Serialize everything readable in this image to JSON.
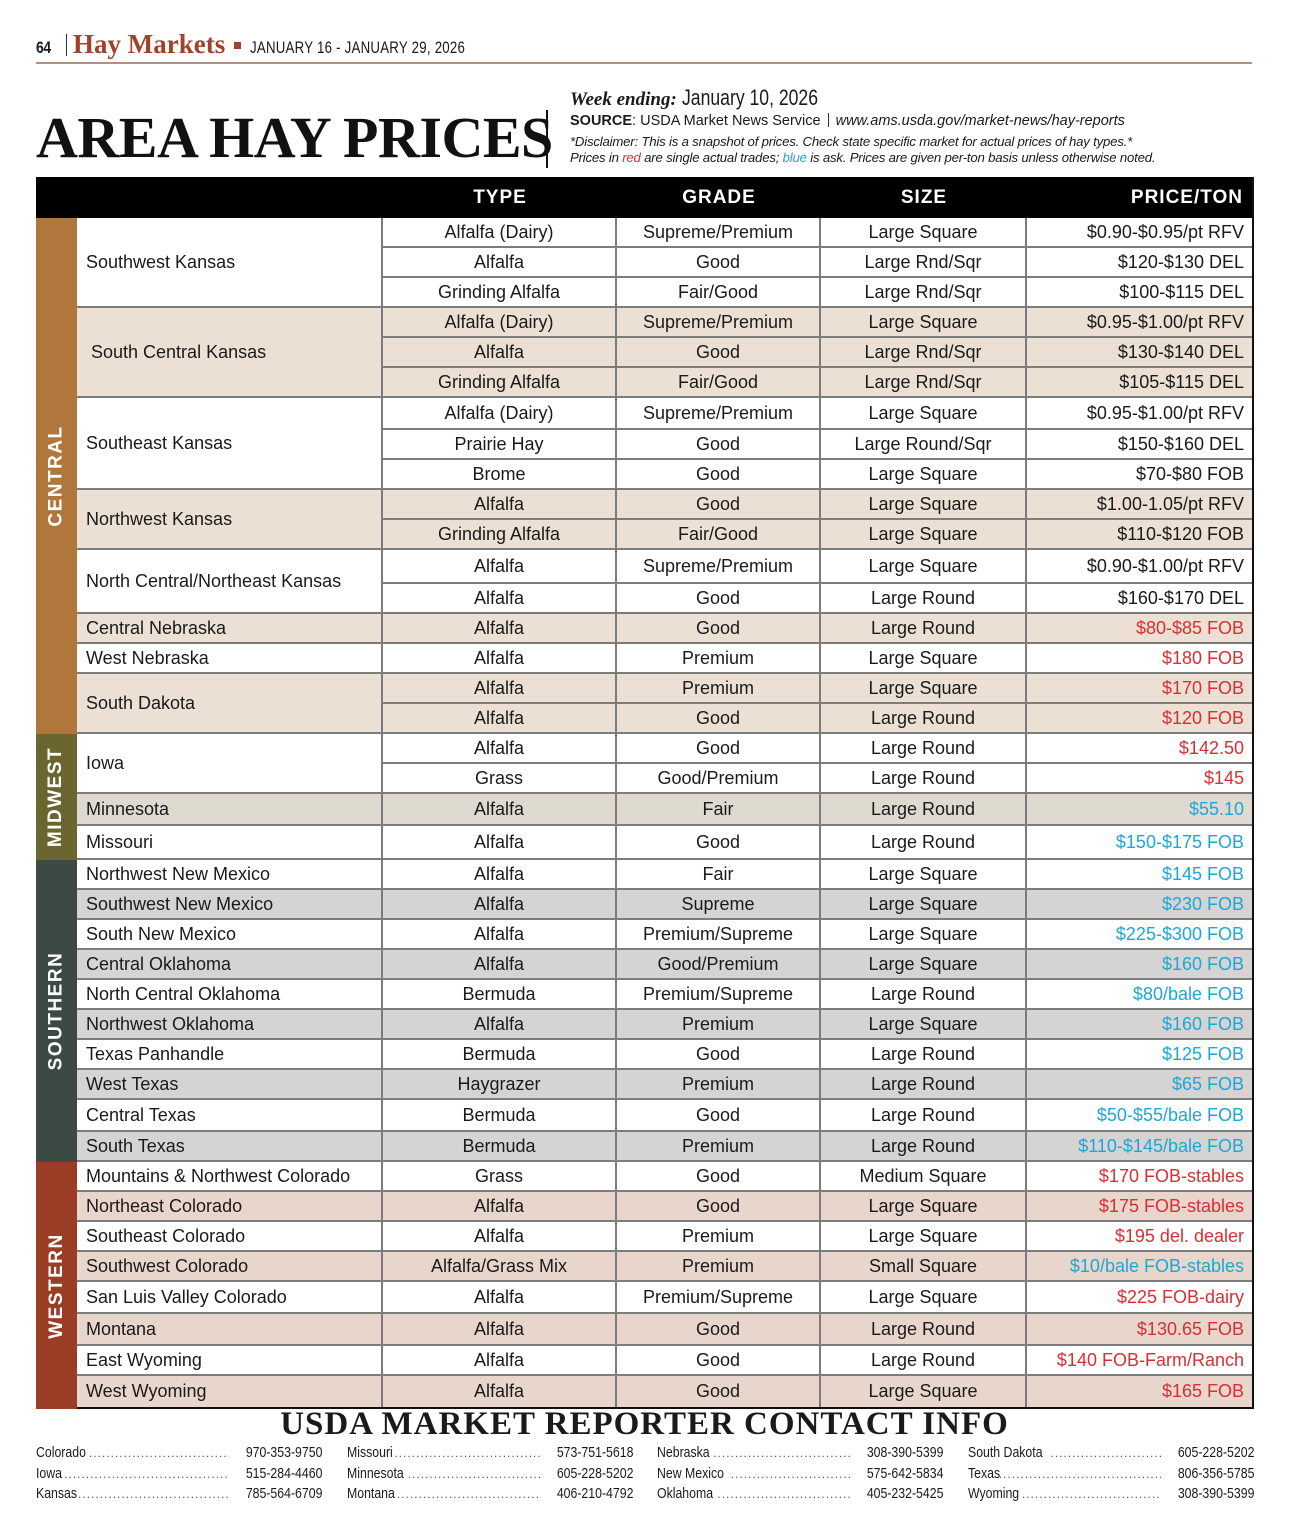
{
  "header": {
    "page_number": "64",
    "section": "Hay Markets",
    "dates": "JANUARY 16 - JANUARY 29, 2026"
  },
  "title": "AREA HAY PRICES",
  "meta": {
    "week_label": "Week ending:",
    "week_value": "January 10, 2026",
    "source_label": "SOURCE",
    "source_value": ": USDA Market News Service",
    "source_url": "www.ams.usda.gov/market-news/hay-reports",
    "disclaimer": "*Disclaimer: This is a snapshot of prices. Check state specific market for actual prices of hay types.*",
    "legend_prefix": "Prices in ",
    "legend_red": "red",
    "legend_mid": " are single actual trades; ",
    "legend_blue": "blue",
    "legend_suffix": " is ask. Prices are given per-ton basis unless otherwise noted."
  },
  "colors": {
    "section_red": "#a1432c",
    "price_red": "#d63034",
    "price_blue": "#1ea6d8",
    "central_band": "#b0773d",
    "midwest_band": "#6b6530",
    "southern_band": "#3d4a44",
    "western_band": "#9a3d24",
    "central_shade": "#ebe0d3",
    "midwest_shade": "#dedad0",
    "southern_shade": "#d5d4d3",
    "western_shade": "#e8d5cb"
  },
  "table": {
    "columns": [
      "TYPE",
      "GRADE",
      "SIZE",
      "PRICE/TON"
    ],
    "regions": [
      {
        "name": "CENTRAL"
      },
      {
        "name": "MIDWEST"
      },
      {
        "name": "SOUTHERN"
      },
      {
        "name": "WESTERN"
      }
    ],
    "locations": [
      "Southwest Kansas",
      "South Central Kansas",
      "Southeast Kansas",
      "Northwest Kansas",
      "North Central/Northeast Kansas",
      "Central Nebraska",
      "West Nebraska",
      "South Dakota",
      "Iowa",
      "Minnesota",
      "Missouri",
      "Northwest New Mexico",
      "Southwest New Mexico",
      "South New Mexico",
      "Central Oklahoma",
      "North Central Oklahoma",
      "Northwest Oklahoma",
      "Texas Panhandle",
      "West Texas",
      "Central Texas",
      "South Texas",
      "Mountains & Northwest Colorado",
      "Northeast Colorado",
      "Southeast Colorado",
      "Southwest Colorado",
      "San Luis Valley Colorado",
      "Montana",
      "East Wyoming",
      "West Wyoming"
    ],
    "rows": [
      {
        "type": "Alfalfa (Dairy)",
        "grade": "Supreme/Premium",
        "size": "Large Square",
        "price": "$0.90-$0.95/pt RFV",
        "price_color": "black"
      },
      {
        "type": "Alfalfa",
        "grade": "Good",
        "size": "Large Rnd/Sqr",
        "price": "$120-$130 DEL",
        "price_color": "black"
      },
      {
        "type": "Grinding Alfalfa",
        "grade": "Fair/Good",
        "size": "Large Rnd/Sqr",
        "price": "$100-$115 DEL",
        "price_color": "black"
      },
      {
        "type": "Alfalfa (Dairy)",
        "grade": "Supreme/Premium",
        "size": "Large Square",
        "price": "$0.95-$1.00/pt RFV",
        "price_color": "black"
      },
      {
        "type": "Alfalfa",
        "grade": "Good",
        "size": "Large Rnd/Sqr",
        "price": "$130-$140 DEL",
        "price_color": "black"
      },
      {
        "type": "Grinding Alfalfa",
        "grade": "Fair/Good",
        "size": "Large Rnd/Sqr",
        "price": "$105-$115 DEL",
        "price_color": "black"
      },
      {
        "type": "Alfalfa (Dairy)",
        "grade": "Supreme/Premium",
        "size": "Large Square",
        "price": "$0.95-$1.00/pt RFV",
        "price_color": "black"
      },
      {
        "type": "Prairie Hay",
        "grade": "Good",
        "size": "Large Round/Sqr",
        "price": "$150-$160 DEL",
        "price_color": "black"
      },
      {
        "type": "Brome",
        "grade": "Good",
        "size": "Large Square",
        "price": "$70-$80 FOB",
        "price_color": "black"
      },
      {
        "type": "Alfalfa",
        "grade": "Good",
        "size": "Large Square",
        "price": "$1.00-1.05/pt RFV",
        "price_color": "black"
      },
      {
        "type": "Grinding Alfalfa",
        "grade": "Fair/Good",
        "size": "Large Square",
        "price": "$110-$120 FOB",
        "price_color": "black"
      },
      {
        "type": "Alfalfa",
        "grade": "Supreme/Premium",
        "size": "Large Square",
        "price": "$0.90-$1.00/pt RFV",
        "price_color": "black"
      },
      {
        "type": "Alfalfa",
        "grade": "Good",
        "size": "Large Round",
        "price": "$160-$170 DEL",
        "price_color": "black"
      },
      {
        "type": "Alfalfa",
        "grade": "Good",
        "size": "Large Round",
        "price": "$80-$85 FOB",
        "price_color": "red"
      },
      {
        "type": "Alfalfa",
        "grade": "Premium",
        "size": "Large Square",
        "price": "$180 FOB",
        "price_color": "red"
      },
      {
        "type": "Alfalfa",
        "grade": "Premium",
        "size": "Large Square",
        "price": "$170 FOB",
        "price_color": "red"
      },
      {
        "type": "Alfalfa",
        "grade": "Good",
        "size": "Large Round",
        "price": "$120 FOB",
        "price_color": "red"
      },
      {
        "type": "Alfalfa",
        "grade": "Good",
        "size": "Large Round",
        "price": "$142.50",
        "price_color": "red"
      },
      {
        "type": "Grass",
        "grade": "Good/Premium",
        "size": "Large Round",
        "price": "$145",
        "price_color": "red"
      },
      {
        "type": "Alfalfa",
        "grade": "Fair",
        "size": "Large Round",
        "price": "$55.10",
        "price_color": "blue"
      },
      {
        "type": "Alfalfa",
        "grade": "Good",
        "size": "Large Round",
        "price": "$150-$175 FOB",
        "price_color": "blue"
      },
      {
        "type": "Alfalfa",
        "grade": "Fair",
        "size": "Large Square",
        "price": "$145 FOB",
        "price_color": "blue"
      },
      {
        "type": "Alfalfa",
        "grade": "Supreme",
        "size": "Large Square",
        "price": "$230 FOB",
        "price_color": "blue"
      },
      {
        "type": "Alfalfa",
        "grade": "Premium/Supreme",
        "size": "Large Square",
        "price": "$225-$300 FOB",
        "price_color": "blue"
      },
      {
        "type": "Alfalfa",
        "grade": "Good/Premium",
        "size": "Large Square",
        "price": "$160 FOB",
        "price_color": "blue"
      },
      {
        "type": "Bermuda",
        "grade": "Premium/Supreme",
        "size": "Large Round",
        "price": "$80/bale FOB",
        "price_color": "blue"
      },
      {
        "type": "Alfalfa",
        "grade": "Premium",
        "size": "Large Square",
        "price": "$160 FOB",
        "price_color": "blue"
      },
      {
        "type": "Bermuda",
        "grade": "Good",
        "size": "Large Round",
        "price": "$125 FOB",
        "price_color": "blue"
      },
      {
        "type": "Haygrazer",
        "grade": "Premium",
        "size": "Large Round",
        "price": "$65 FOB",
        "price_color": "blue"
      },
      {
        "type": "Bermuda",
        "grade": "Good",
        "size": "Large Round",
        "price": "$50-$55/bale FOB",
        "price_color": "blue"
      },
      {
        "type": "Bermuda",
        "grade": "Premium",
        "size": "Large Round",
        "price": "$110-$145/bale FOB",
        "price_color": "blue"
      },
      {
        "type": "Grass",
        "grade": "Good",
        "size": "Medium Square",
        "price": "$170 FOB-stables",
        "price_color": "red"
      },
      {
        "type": "Alfalfa",
        "grade": "Good",
        "size": "Large Square",
        "price": "$175 FOB-stables",
        "price_color": "red"
      },
      {
        "type": "Alfalfa",
        "grade": "Premium",
        "size": "Large Square",
        "price": "$195 del. dealer",
        "price_color": "red"
      },
      {
        "type": "Alfalfa/Grass Mix",
        "grade": "Premium",
        "size": "Small Square",
        "price": "$10/bale FOB-stables",
        "price_color": "blue"
      },
      {
        "type": "Alfalfa",
        "grade": "Premium/Supreme",
        "size": "Large Square",
        "price": "$225 FOB-dairy",
        "price_color": "red"
      },
      {
        "type": "Alfalfa",
        "grade": "Good",
        "size": "Large Round",
        "price": "$130.65 FOB",
        "price_color": "red"
      },
      {
        "type": "Alfalfa",
        "grade": "Good",
        "size": "Large Round",
        "price": "$140 FOB-Farm/Ranch",
        "price_color": "red"
      },
      {
        "type": "Alfalfa",
        "grade": "Good",
        "size": "Large Square",
        "price": "$165 FOB",
        "price_color": "red"
      }
    ]
  },
  "contacts": {
    "title": "USDA MARKET REPORTER CONTACT INFO",
    "entries": [
      {
        "state": "Colorado",
        "phone": "970-353-9750"
      },
      {
        "state": "Missouri",
        "phone": "573-751-5618"
      },
      {
        "state": "Nebraska",
        "phone": "308-390-5399"
      },
      {
        "state": "South Dakota",
        "phone": "605-228-5202"
      },
      {
        "state": "Iowa",
        "phone": "515-284-4460"
      },
      {
        "state": "Minnesota",
        "phone": "605-228-5202"
      },
      {
        "state": "New Mexico",
        "phone": "575-642-5834"
      },
      {
        "state": "Texas",
        "phone": "806-356-5785"
      },
      {
        "state": "Kansas",
        "phone": "785-564-6709"
      },
      {
        "state": "Montana",
        "phone": "406-210-4792"
      },
      {
        "state": "Oklahoma",
        "phone": "405-232-5425"
      },
      {
        "state": "Wyoming",
        "phone": "308-390-5399"
      }
    ]
  }
}
